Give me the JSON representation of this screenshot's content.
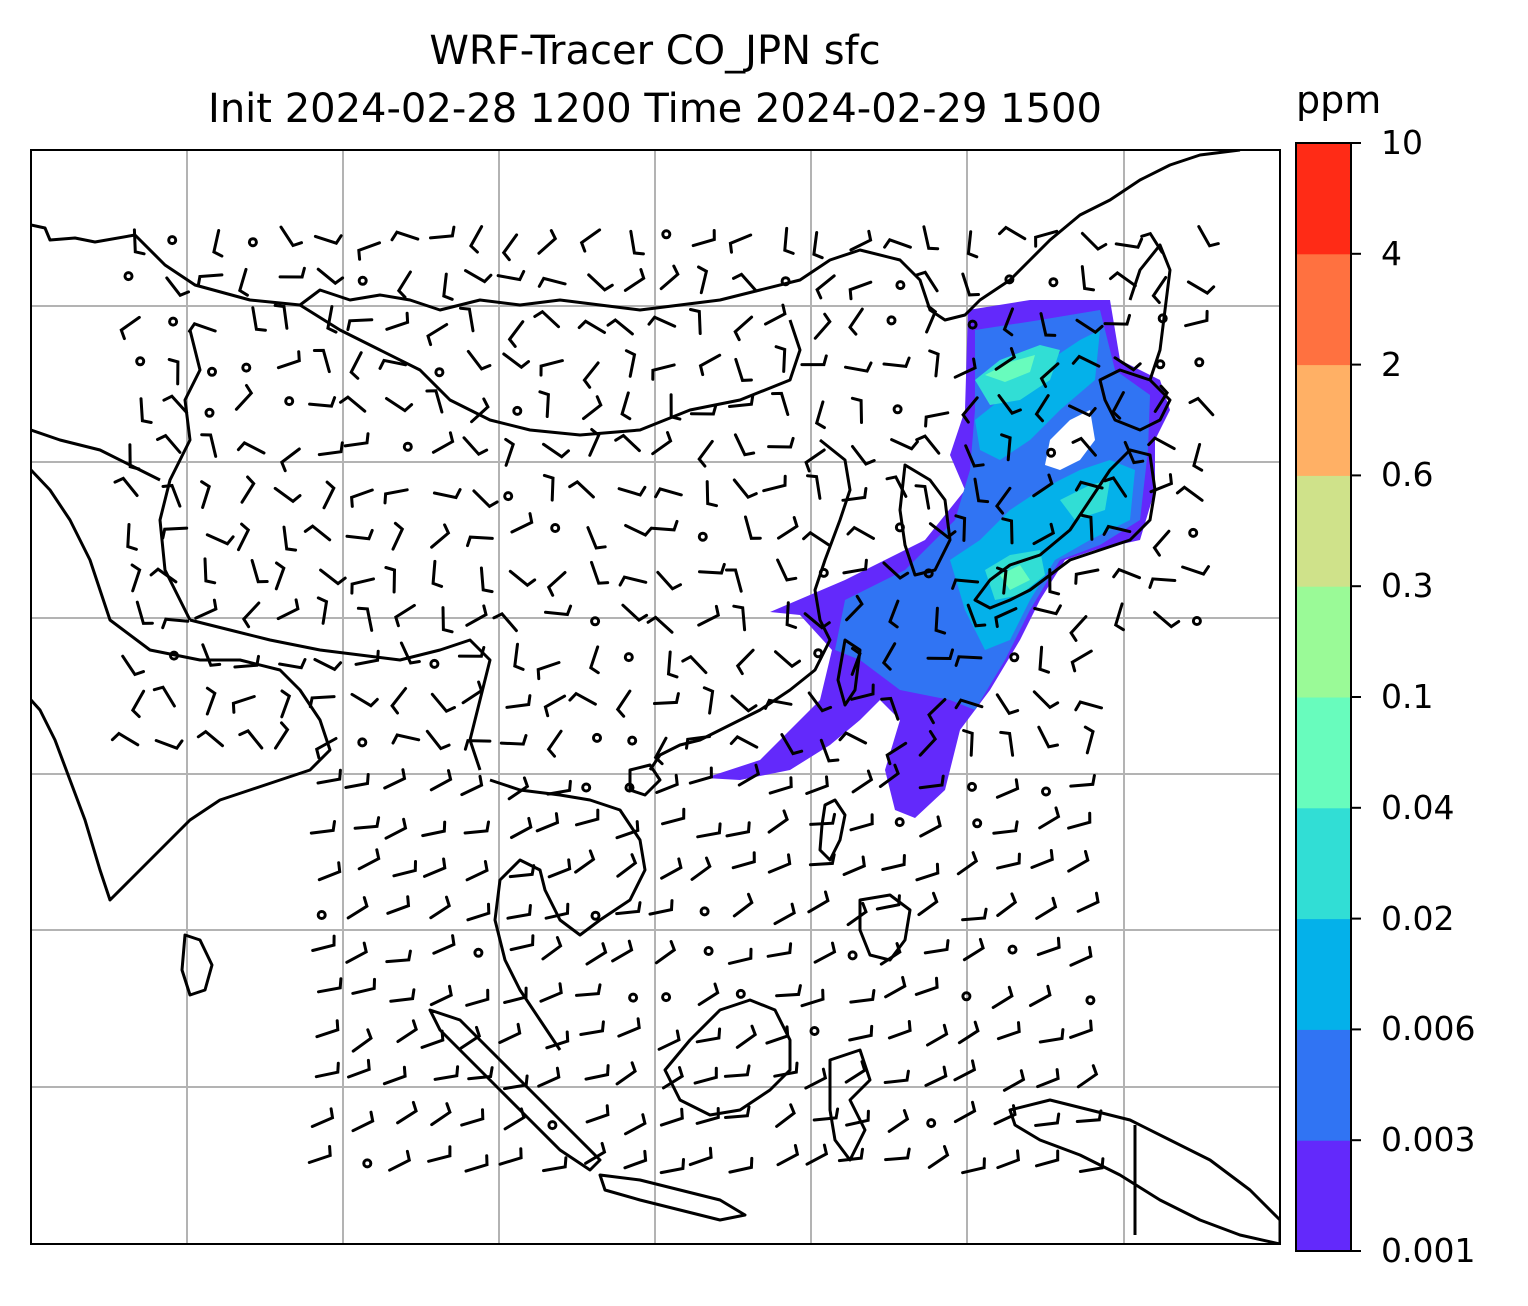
{
  "title": {
    "line1": "WRF-Tracer CO_JPN sfc",
    "line2": "Init 2024-02-28 1200 Time 2024-02-29 1500"
  },
  "colorbar": {
    "unit": "ppm",
    "levels": [
      "0.001",
      "0.003",
      "0.006",
      "0.02",
      "0.04",
      "0.1",
      "0.3",
      "0.6",
      "2",
      "4",
      "10"
    ],
    "colors": [
      "#6329fb",
      "#3074f3",
      "#04b1ea",
      "#31ded5",
      "#68fcbd",
      "#9afa97",
      "#cfe28a",
      "#ffb065",
      "#ff7140",
      "#ff2b16"
    ]
  },
  "map": {
    "frame_color": "#000000",
    "grid_color": "#b3b3b3",
    "coastline_color": "#000000",
    "background": "#ffffff",
    "overlays": [
      "gridlines",
      "coastlines",
      "wind-barbs",
      "co-tracer-plume"
    ]
  }
}
